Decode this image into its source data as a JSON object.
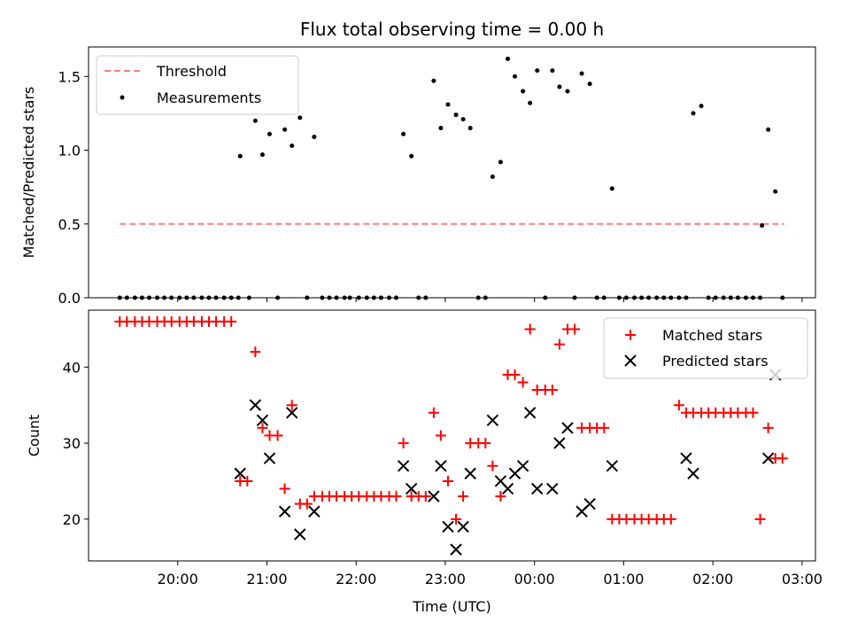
{
  "chart_data": [
    {
      "type": "scatter",
      "title": "Flux total observing time = 0.00 h",
      "xlabel": "",
      "ylabel": "Matched/Predicted stars",
      "xlim": [
        19.0,
        3.15
      ],
      "ylim": [
        0.0,
        1.7
      ],
      "yticks": [
        0.0,
        0.5,
        1.0,
        1.5
      ],
      "ytick_labels": [
        "0.0",
        "0.5",
        "1.0",
        "1.5"
      ],
      "legend": {
        "position": "top-left",
        "entries": [
          "Threshold",
          "Measurements"
        ]
      },
      "threshold": {
        "name": "Threshold",
        "value": 0.5,
        "x_range": [
          19.35,
          2.8
        ],
        "color": "#ff7f7f"
      },
      "series": [
        {
          "name": "Measurements",
          "marker": "dot",
          "color": "#000000",
          "x": [
            19.35,
            19.43,
            19.52,
            19.6,
            19.68,
            19.77,
            19.85,
            19.93,
            20.02,
            20.1,
            20.18,
            20.27,
            20.35,
            20.43,
            20.52,
            20.6,
            20.68,
            20.7,
            20.8,
            20.87,
            20.95,
            21.03,
            21.12,
            21.2,
            21.28,
            21.37,
            21.45,
            21.53,
            21.62,
            21.7,
            21.78,
            21.87,
            21.93,
            22.03,
            22.12,
            22.2,
            22.28,
            22.37,
            22.45,
            22.53,
            22.62,
            22.7,
            22.78,
            22.87,
            22.95,
            23.03,
            23.12,
            23.2,
            23.28,
            23.37,
            23.45,
            23.53,
            23.62,
            23.7,
            23.78,
            23.87,
            23.95,
            24.03,
            24.12,
            24.2,
            24.28,
            24.37,
            24.45,
            24.53,
            24.62,
            24.7,
            24.78,
            24.87,
            24.95,
            25.03,
            25.12,
            25.2,
            25.28,
            25.37,
            25.45,
            25.53,
            25.62,
            25.7,
            25.78,
            25.87,
            25.95,
            26.03,
            26.12,
            26.2,
            26.28,
            26.37,
            26.45,
            26.53,
            26.55,
            26.62,
            26.7,
            26.78
          ],
          "y": [
            0,
            0,
            0,
            0,
            0,
            0,
            0,
            0,
            0,
            0,
            0,
            0,
            0,
            0,
            0,
            0,
            0,
            0.96,
            0,
            1.2,
            0.97,
            1.11,
            0,
            1.14,
            1.03,
            1.22,
            0,
            1.09,
            0,
            0,
            0,
            0,
            0,
            0,
            0,
            0,
            0,
            0,
            0,
            1.11,
            0.96,
            0,
            0,
            1.47,
            1.15,
            1.31,
            1.24,
            1.21,
            1.15,
            0,
            0,
            0.82,
            0.92,
            1.62,
            1.5,
            1.4,
            1.32,
            1.54,
            0,
            1.54,
            1.43,
            1.4,
            0,
            1.52,
            1.45,
            0,
            0,
            0.74,
            0,
            0,
            0,
            0,
            0,
            0,
            0,
            0,
            0,
            0,
            1.25,
            1.3,
            0,
            0,
            0,
            0,
            0,
            0,
            0,
            0,
            0.49,
            1.14,
            0.72,
            0
          ]
        }
      ]
    },
    {
      "type": "scatter",
      "title": "",
      "xlabel": "Time (UTC)",
      "ylabel": "Count",
      "xlim": [
        19.0,
        3.15
      ],
      "ylim": [
        14.5,
        47.5
      ],
      "yticks": [
        20,
        30,
        40
      ],
      "ytick_labels": [
        "20",
        "30",
        "40"
      ],
      "xticks": [
        20,
        21,
        22,
        23,
        0,
        1,
        2,
        3
      ],
      "xtick_labels": [
        "20:00",
        "21:00",
        "22:00",
        "23:00",
        "00:00",
        "01:00",
        "02:00",
        "03:00"
      ],
      "legend": {
        "position": "top-right",
        "entries": [
          "Matched stars",
          "Predicted stars"
        ]
      },
      "series": [
        {
          "name": "Matched stars",
          "marker": "plus",
          "color": "#ff0000",
          "x": [
            19.35,
            19.43,
            19.52,
            19.6,
            19.68,
            19.77,
            19.85,
            19.93,
            20.02,
            20.1,
            20.18,
            20.27,
            20.35,
            20.43,
            20.52,
            20.6,
            20.7,
            20.78,
            20.87,
            20.95,
            21.03,
            21.12,
            21.2,
            21.28,
            21.37,
            21.45,
            21.53,
            21.62,
            21.7,
            21.78,
            21.87,
            21.95,
            22.03,
            22.12,
            22.2,
            22.28,
            22.37,
            22.45,
            22.53,
            22.62,
            22.7,
            22.78,
            22.87,
            22.95,
            23.03,
            23.12,
            23.2,
            23.28,
            23.37,
            23.45,
            23.53,
            23.62,
            23.7,
            23.78,
            23.87,
            23.95,
            24.03,
            24.12,
            24.2,
            24.28,
            24.37,
            24.45,
            24.53,
            24.62,
            24.7,
            24.78,
            24.87,
            24.95,
            25.03,
            25.12,
            25.2,
            25.28,
            25.37,
            25.45,
            25.53,
            25.62,
            25.7,
            25.78,
            25.87,
            25.95,
            26.03,
            26.12,
            26.2,
            26.28,
            26.37,
            26.45,
            26.53,
            26.62,
            26.7,
            26.78
          ],
          "y": [
            46,
            46,
            46,
            46,
            46,
            46,
            46,
            46,
            46,
            46,
            46,
            46,
            46,
            46,
            46,
            46,
            25,
            25,
            42,
            32,
            31,
            31,
            24,
            35,
            22,
            22,
            23,
            23,
            23,
            23,
            23,
            23,
            23,
            23,
            23,
            23,
            23,
            23,
            30,
            23,
            23,
            23,
            34,
            31,
            25,
            20,
            23,
            30,
            30,
            30,
            27,
            23,
            39,
            39,
            38,
            45,
            37,
            37,
            37,
            43,
            45,
            45,
            32,
            32,
            32,
            32,
            20,
            20,
            20,
            20,
            20,
            20,
            20,
            20,
            20,
            35,
            34,
            34,
            34,
            34,
            34,
            34,
            34,
            34,
            34,
            34,
            20,
            32,
            28,
            28
          ]
        },
        {
          "name": "Predicted stars",
          "marker": "x",
          "color": "#000000",
          "x": [
            20.7,
            20.87,
            20.95,
            21.03,
            21.2,
            21.28,
            21.37,
            21.53,
            22.53,
            22.62,
            22.87,
            22.95,
            23.03,
            23.12,
            23.2,
            23.28,
            23.53,
            23.62,
            23.7,
            23.78,
            23.87,
            23.95,
            24.03,
            24.2,
            24.28,
            24.37,
            24.53,
            24.62,
            24.87,
            25.7,
            25.78,
            26.62,
            26.7
          ],
          "y": [
            26,
            35,
            33,
            28,
            21,
            34,
            18,
            21,
            27,
            24,
            23,
            27,
            19,
            16,
            19,
            26,
            33,
            25,
            24,
            26,
            27,
            34,
            24,
            24,
            30,
            32,
            21,
            22,
            27,
            28,
            26,
            28,
            39
          ]
        }
      ]
    }
  ]
}
